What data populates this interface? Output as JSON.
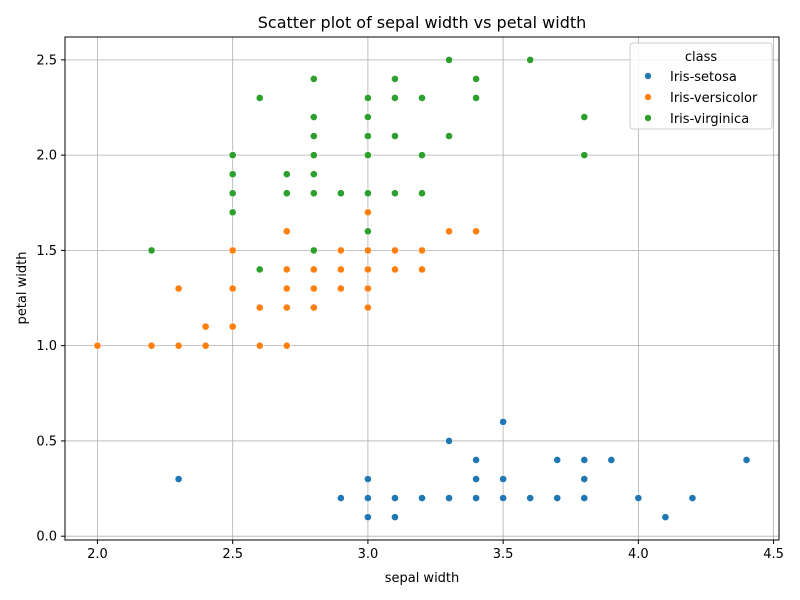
{
  "chart_data": {
    "type": "scatter",
    "title": "Scatter plot of sepal width vs petal width",
    "xlabel": "sepal width",
    "ylabel": "petal width",
    "xlim": [
      1.88,
      4.52
    ],
    "ylim": [
      -0.02,
      2.62
    ],
    "xticks": [
      "2.0",
      "2.5",
      "3.0",
      "3.5",
      "4.0",
      "4.5"
    ],
    "yticks": [
      "0.0",
      "0.5",
      "1.0",
      "1.5",
      "2.0",
      "2.5"
    ],
    "grid": true,
    "legend": {
      "title": "class",
      "placement": "top-right"
    },
    "series": [
      {
        "name": "Iris-setosa",
        "color": "#1f77b4",
        "points": [
          [
            2.3,
            0.3
          ],
          [
            2.9,
            0.2
          ],
          [
            3.0,
            0.1
          ],
          [
            3.0,
            0.2
          ],
          [
            3.0,
            0.3
          ],
          [
            3.1,
            0.1
          ],
          [
            3.1,
            0.2
          ],
          [
            3.2,
            0.2
          ],
          [
            3.3,
            0.2
          ],
          [
            3.3,
            0.5
          ],
          [
            3.4,
            0.2
          ],
          [
            3.4,
            0.3
          ],
          [
            3.4,
            0.4
          ],
          [
            3.5,
            0.2
          ],
          [
            3.5,
            0.3
          ],
          [
            3.5,
            0.6
          ],
          [
            3.6,
            0.2
          ],
          [
            3.7,
            0.2
          ],
          [
            3.7,
            0.4
          ],
          [
            3.8,
            0.2
          ],
          [
            3.8,
            0.3
          ],
          [
            3.8,
            0.4
          ],
          [
            3.9,
            0.4
          ],
          [
            4.0,
            0.2
          ],
          [
            4.1,
            0.1
          ],
          [
            4.2,
            0.2
          ],
          [
            4.4,
            0.4
          ]
        ]
      },
      {
        "name": "Iris-versicolor",
        "color": "#ff7f0e",
        "points": [
          [
            2.0,
            1.0
          ],
          [
            2.2,
            1.0
          ],
          [
            2.3,
            1.0
          ],
          [
            2.3,
            1.3
          ],
          [
            2.4,
            1.0
          ],
          [
            2.4,
            1.1
          ],
          [
            2.5,
            1.1
          ],
          [
            2.5,
            1.3
          ],
          [
            2.5,
            1.5
          ],
          [
            2.6,
            1.0
          ],
          [
            2.6,
            1.2
          ],
          [
            2.7,
            1.0
          ],
          [
            2.7,
            1.2
          ],
          [
            2.7,
            1.3
          ],
          [
            2.7,
            1.4
          ],
          [
            2.7,
            1.6
          ],
          [
            2.8,
            1.2
          ],
          [
            2.8,
            1.3
          ],
          [
            2.8,
            1.4
          ],
          [
            2.9,
            1.3
          ],
          [
            2.9,
            1.4
          ],
          [
            2.9,
            1.5
          ],
          [
            3.0,
            1.2
          ],
          [
            3.0,
            1.3
          ],
          [
            3.0,
            1.4
          ],
          [
            3.0,
            1.5
          ],
          [
            3.0,
            1.7
          ],
          [
            3.1,
            1.4
          ],
          [
            3.1,
            1.5
          ],
          [
            3.2,
            1.4
          ],
          [
            3.2,
            1.5
          ],
          [
            3.3,
            1.6
          ],
          [
            3.4,
            1.6
          ]
        ]
      },
      {
        "name": "Iris-virginica",
        "color": "#2ca02c",
        "points": [
          [
            2.2,
            1.5
          ],
          [
            2.5,
            1.7
          ],
          [
            2.5,
            1.8
          ],
          [
            2.5,
            1.9
          ],
          [
            2.5,
            2.0
          ],
          [
            2.6,
            1.4
          ],
          [
            2.6,
            2.3
          ],
          [
            2.7,
            1.8
          ],
          [
            2.7,
            1.9
          ],
          [
            2.8,
            1.5
          ],
          [
            2.8,
            1.8
          ],
          [
            2.8,
            1.9
          ],
          [
            2.8,
            2.0
          ],
          [
            2.8,
            2.1
          ],
          [
            2.8,
            2.2
          ],
          [
            2.8,
            2.4
          ],
          [
            2.9,
            1.8
          ],
          [
            3.0,
            1.6
          ],
          [
            3.0,
            1.8
          ],
          [
            3.0,
            2.0
          ],
          [
            3.0,
            2.1
          ],
          [
            3.0,
            2.2
          ],
          [
            3.0,
            2.3
          ],
          [
            3.1,
            1.8
          ],
          [
            3.1,
            2.1
          ],
          [
            3.1,
            2.3
          ],
          [
            3.1,
            2.4
          ],
          [
            3.2,
            1.8
          ],
          [
            3.2,
            2.0
          ],
          [
            3.2,
            2.3
          ],
          [
            3.3,
            2.1
          ],
          [
            3.3,
            2.5
          ],
          [
            3.4,
            2.3
          ],
          [
            3.4,
            2.4
          ],
          [
            3.6,
            2.5
          ],
          [
            3.8,
            2.0
          ],
          [
            3.8,
            2.2
          ]
        ]
      }
    ]
  }
}
